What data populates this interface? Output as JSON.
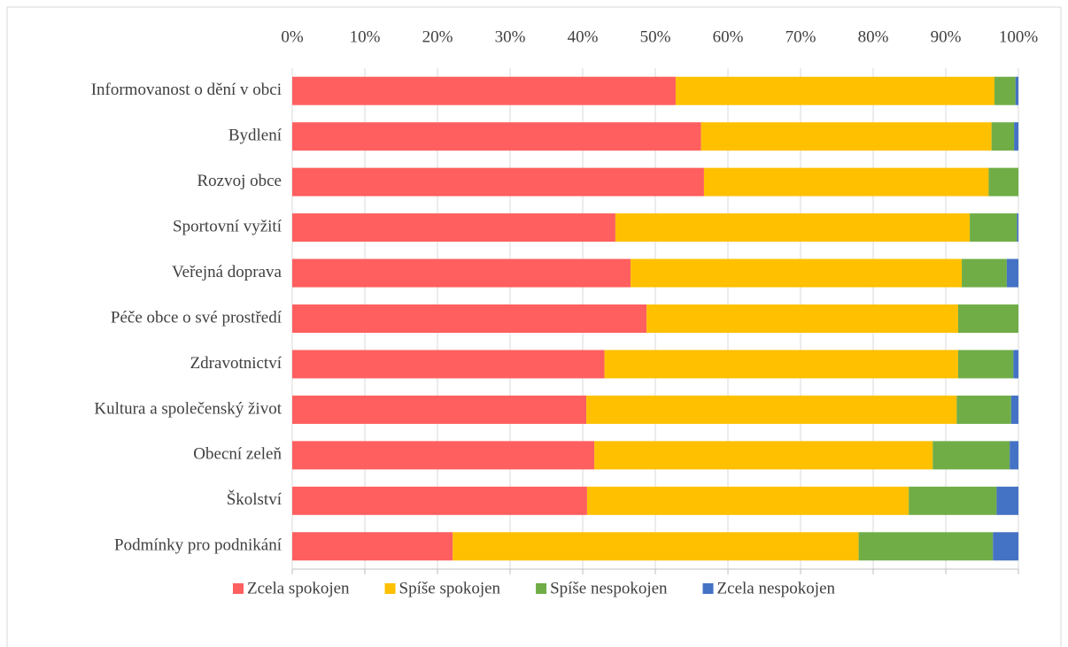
{
  "chart_data": {
    "type": "stacked_bar_horizontal",
    "categories": [
      "Informovanost o dění v obci",
      "Bydlení",
      "Rozvoj obce",
      "Sportovní vyžití",
      "Veřejná doprava",
      "Péče obce o své prostředí",
      "Zdravotnictví",
      "Kultura a společenský život",
      "Obecní zeleň",
      "Školství",
      "Podmínky pro podnikání"
    ],
    "series": [
      {
        "name": "Zcela spokojen",
        "color": "#ff5f5f",
        "values": [
          52.8,
          56.3,
          56.7,
          44.5,
          46.6,
          48.8,
          43.0,
          40.5,
          41.6,
          40.6,
          22.1
        ]
      },
      {
        "name": "Spíše spokojen",
        "color": "#ffc000",
        "values": [
          43.9,
          40.0,
          39.2,
          48.8,
          45.6,
          42.9,
          48.7,
          51.0,
          46.6,
          44.3,
          55.9
        ]
      },
      {
        "name": "Spíše nespokojen",
        "color": "#70ad47",
        "values": [
          2.9,
          3.1,
          4.1,
          6.5,
          6.2,
          8.3,
          7.6,
          7.5,
          10.6,
          12.1,
          18.5
        ]
      },
      {
        "name": "Zcela nespokojen",
        "color": "#4472c4",
        "values": [
          0.4,
          0.6,
          0,
          0.2,
          1.6,
          0,
          0.7,
          1.0,
          1.2,
          3.0,
          3.5
        ]
      }
    ],
    "xlim": [
      0,
      100
    ],
    "xticks": [
      {
        "value": 0,
        "label": "0%"
      },
      {
        "value": 10,
        "label": "10%"
      },
      {
        "value": 20,
        "label": "20%"
      },
      {
        "value": 30,
        "label": "30%"
      },
      {
        "value": 40,
        "label": "40%"
      },
      {
        "value": 50,
        "label": "50%"
      },
      {
        "value": 60,
        "label": "60%"
      },
      {
        "value": 70,
        "label": "70%"
      },
      {
        "value": 80,
        "label": "80%"
      },
      {
        "value": 90,
        "label": "90%"
      },
      {
        "value": 100,
        "label": "100%"
      }
    ],
    "grid": true,
    "legend": "bottom"
  }
}
